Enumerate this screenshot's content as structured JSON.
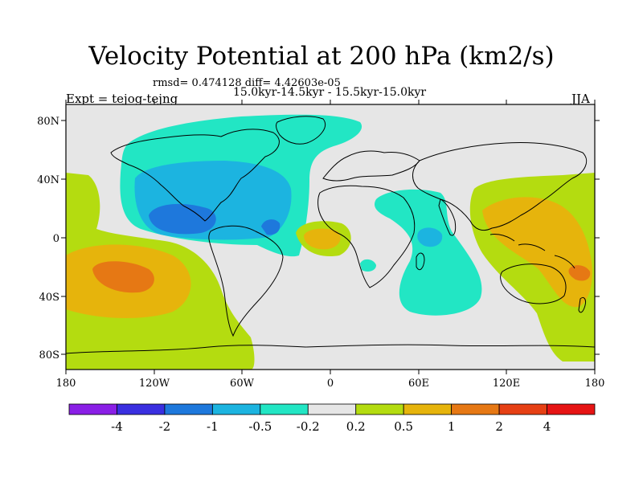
{
  "title": "Velocity Potential at 200 hPa (km2/s)",
  "stats_line": "rmsd= 0.474128 diff= 4.42603e-05",
  "period_line": "15.0kyr-14.5kyr - 15.5kyr-15.0kyr",
  "experiment": "Expt = tejog-tejng",
  "season": "JJA",
  "lat_ticks": [
    "80N",
    "40N",
    "0",
    "40S",
    "80S"
  ],
  "lon_ticks": [
    "180",
    "120W",
    "60W",
    "0",
    "60E",
    "120E",
    "180"
  ],
  "colorbar": {
    "levels": [
      "-4",
      "-2",
      "-1",
      "-0.5",
      "-0.2",
      "0.2",
      "0.5",
      "1",
      "2",
      "4"
    ],
    "colors": [
      "#8a1fe6",
      "#3a2fe0",
      "#1e78dc",
      "#1cb4e0",
      "#22e6c4",
      "#e6e6e6",
      "#b4dc10",
      "#e6b40c",
      "#e67814",
      "#e64014",
      "#e61414"
    ]
  }
}
